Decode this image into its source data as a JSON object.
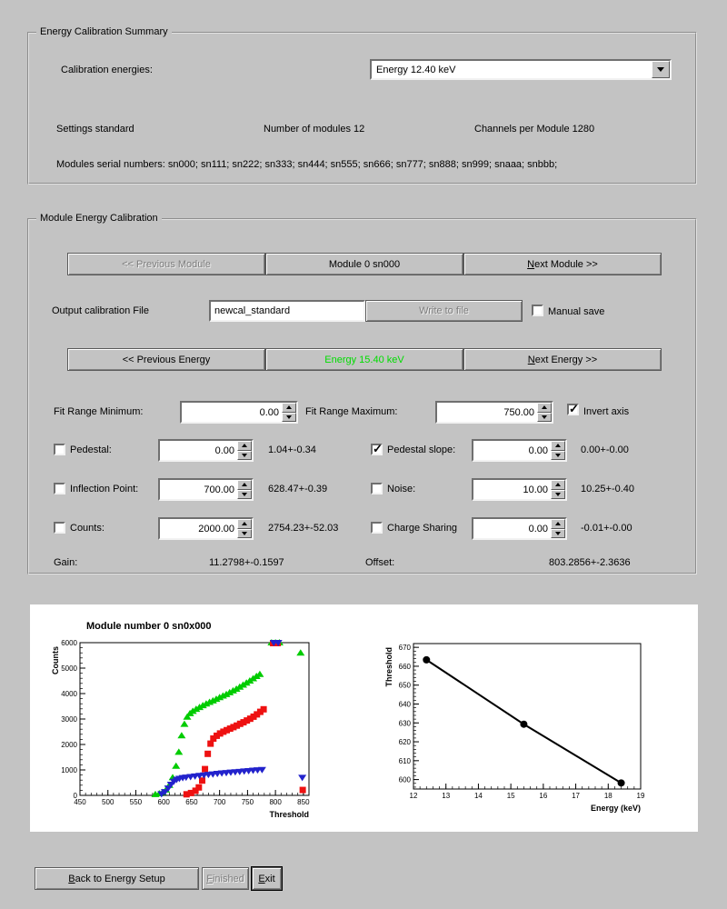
{
  "window": {
    "bg_color": "#c3c3c3",
    "energy_button_color": "#00dd00"
  },
  "summary": {
    "title": "Energy Calibration Summary",
    "calibration_energies_label": "Calibration energies:",
    "energy_select_value": "Energy 12.40 keV",
    "settings_label": "Settings standard",
    "num_modules_label": "Number of modules 12",
    "channels_label": "Channels per Module 1280",
    "serials_label": "Modules serial numbers: sn000; sn111; sn222; sn333; sn444; sn555; sn666; sn777; sn888; sn999; snaaa; snbbb;"
  },
  "module_cal": {
    "title": "Module Energy Calibration",
    "prev_module_button": "<< Previous Module",
    "module_button": "Module 0 sn000",
    "next_module_button": "Next Module >>",
    "next_module_underline": "N",
    "output_file_label": "Output calibration File",
    "output_file_value": "newcal_standard",
    "write_to_file_button": "Write to file",
    "manual_save_label": "Manual save",
    "manual_save_checked": false,
    "prev_energy_button": "<< Previous Energy",
    "current_energy_button": "Energy 15.40 keV",
    "next_energy_button": "Next Energy >>",
    "next_energy_underline": "N",
    "fit_range_min_label": "Fit Range Minimum:",
    "fit_range_min_value": "0.00",
    "fit_range_max_label": "Fit Range Maximum:",
    "fit_range_max_value": "750.00",
    "invert_axis_label": "Invert axis",
    "invert_axis_checked": true,
    "params": [
      {
        "left": {
          "label": "Pedestal:",
          "checked": false,
          "value": "0.00",
          "result": "1.04+-0.34"
        },
        "right": {
          "label": "Pedestal slope:",
          "checked": true,
          "value": "0.00",
          "result": "0.00+-0.00"
        }
      },
      {
        "left": {
          "label": "Inflection Point:",
          "checked": false,
          "value": "700.00",
          "result": "628.47+-0.39"
        },
        "right": {
          "label": "Noise:",
          "checked": false,
          "value": "10.00",
          "result": "10.25+-0.40"
        }
      },
      {
        "left": {
          "label": "Counts:",
          "checked": false,
          "value": "2000.00",
          "result": "2754.23+-52.03"
        },
        "right": {
          "label": "Charge Sharing",
          "checked": false,
          "value": "0.00",
          "result": "-0.01+-0.00"
        }
      }
    ],
    "gain_label": "Gain:",
    "gain_value": "11.2798+-0.1597",
    "offset_label": "Offset:",
    "offset_value": "803.2856+-2.3636"
  },
  "footer": {
    "back_button": "Back to Energy Setup",
    "back_underline": "B",
    "finished_button": "Finished",
    "finished_underline": "F",
    "exit_button": "Exit",
    "exit_underline": "E"
  },
  "chart_data": [
    {
      "type": "scatter",
      "title": "Module number 0 sn0x000",
      "xlabel": "Threshold",
      "ylabel": "Counts",
      "xlim": [
        450,
        860
      ],
      "ylim": [
        0,
        6000
      ],
      "xticks": [
        450,
        500,
        550,
        600,
        650,
        700,
        750,
        800,
        850
      ],
      "yticks": [
        0,
        1000,
        2000,
        3000,
        4000,
        5000,
        6000
      ],
      "series": [
        {
          "name": "scan-energy-1",
          "marker": "triangle-up",
          "color": "#00cc00",
          "points": [
            [
              585,
              40
            ],
            [
              592,
              70
            ],
            [
              598,
              120
            ],
            [
              604,
              220
            ],
            [
              610,
              400
            ],
            [
              616,
              700
            ],
            [
              622,
              1150
            ],
            [
              627,
              1700
            ],
            [
              632,
              2350
            ],
            [
              637,
              2800
            ],
            [
              642,
              3080
            ],
            [
              647,
              3220
            ],
            [
              652,
              3310
            ],
            [
              658,
              3390
            ],
            [
              664,
              3460
            ],
            [
              670,
              3530
            ],
            [
              676,
              3600
            ],
            [
              682,
              3660
            ],
            [
              688,
              3720
            ],
            [
              694,
              3780
            ],
            [
              700,
              3850
            ],
            [
              706,
              3910
            ],
            [
              712,
              3970
            ],
            [
              718,
              4040
            ],
            [
              724,
              4110
            ],
            [
              730,
              4180
            ],
            [
              736,
              4260
            ],
            [
              742,
              4340
            ],
            [
              748,
              4420
            ],
            [
              754,
              4500
            ],
            [
              760,
              4590
            ],
            [
              766,
              4680
            ],
            [
              772,
              4760
            ],
            [
              793,
              6000
            ],
            [
              800,
              6000
            ],
            [
              807,
              6000
            ],
            [
              845,
              5600
            ]
          ]
        },
        {
          "name": "scan-energy-2",
          "marker": "square",
          "color": "#ee1111",
          "points": [
            [
              640,
              60
            ],
            [
              648,
              110
            ],
            [
              656,
              200
            ],
            [
              662,
              330
            ],
            [
              668,
              600
            ],
            [
              673,
              1050
            ],
            [
              678,
              1650
            ],
            [
              683,
              2050
            ],
            [
              688,
              2250
            ],
            [
              694,
              2360
            ],
            [
              700,
              2450
            ],
            [
              706,
              2520
            ],
            [
              712,
              2580
            ],
            [
              718,
              2640
            ],
            [
              724,
              2700
            ],
            [
              730,
              2760
            ],
            [
              736,
              2830
            ],
            [
              742,
              2890
            ],
            [
              748,
              2960
            ],
            [
              754,
              3030
            ],
            [
              760,
              3110
            ],
            [
              766,
              3200
            ],
            [
              772,
              3300
            ],
            [
              778,
              3400
            ],
            [
              795,
              6000
            ],
            [
              803,
              6000
            ],
            [
              848,
              230
            ]
          ]
        },
        {
          "name": "scan-energy-3",
          "marker": "triangle-down",
          "color": "#2222cc",
          "points": [
            [
              596,
              60
            ],
            [
              602,
              140
            ],
            [
              608,
              280
            ],
            [
              613,
              430
            ],
            [
              618,
              550
            ],
            [
              623,
              620
            ],
            [
              628,
              660
            ],
            [
              634,
              690
            ],
            [
              640,
              710
            ],
            [
              648,
              730
            ],
            [
              656,
              755
            ],
            [
              664,
              775
            ],
            [
              672,
              795
            ],
            [
              680,
              815
            ],
            [
              688,
              835
            ],
            [
              696,
              855
            ],
            [
              704,
              875
            ],
            [
              712,
              890
            ],
            [
              720,
              905
            ],
            [
              728,
              920
            ],
            [
              736,
              935
            ],
            [
              744,
              950
            ],
            [
              752,
              965
            ],
            [
              760,
              980
            ],
            [
              768,
              995
            ],
            [
              776,
              1010
            ],
            [
              797,
              6000
            ],
            [
              805,
              6000
            ],
            [
              848,
              700
            ]
          ]
        }
      ]
    },
    {
      "type": "line",
      "title": "",
      "xlabel": "Energy (keV)",
      "ylabel": "Threshold",
      "xlim": [
        12,
        19
      ],
      "ylim": [
        595,
        672
      ],
      "xticks": [
        12,
        13,
        14,
        15,
        16,
        17,
        18,
        19
      ],
      "yticks": [
        600,
        610,
        620,
        630,
        640,
        650,
        660,
        670
      ],
      "series": [
        {
          "name": "threshold-vs-energy-fit",
          "marker": "circle",
          "color": "#000000",
          "line": true,
          "line_width": 2,
          "points": [
            [
              12.4,
              663.4
            ],
            [
              15.4,
              629.3
            ],
            [
              18.4,
              598.2
            ]
          ]
        }
      ]
    }
  ]
}
